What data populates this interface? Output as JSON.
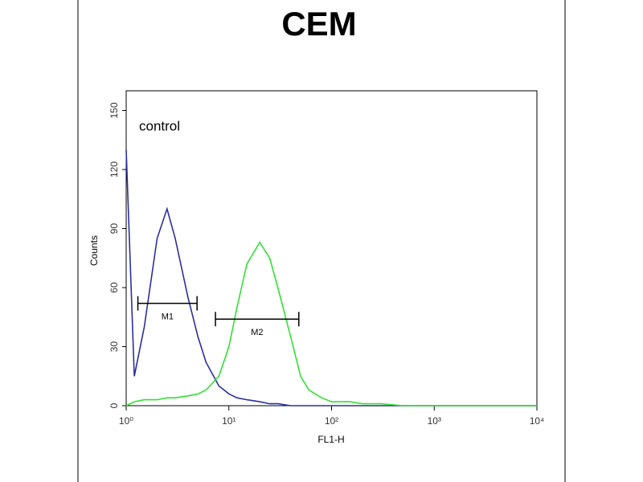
{
  "chart_data": {
    "type": "line",
    "title": "CEM",
    "x_label": "FL1-H",
    "y_label": "Counts",
    "xscale": "log",
    "xlim": [
      1,
      10000
    ],
    "xticks": [
      {
        "value": 1,
        "label": "10⁰"
      },
      {
        "value": 10,
        "label": "10¹"
      },
      {
        "value": 100,
        "label": "10²"
      },
      {
        "value": 1000,
        "label": "10³"
      },
      {
        "value": 10000,
        "label": "10⁴"
      }
    ],
    "ylim": [
      0,
      160
    ],
    "yticks": [
      0,
      30,
      60,
      90,
      120,
      150
    ],
    "x": [
      1,
      1.2,
      1.5,
      2,
      2.5,
      3,
      4,
      5,
      6,
      8,
      10,
      12,
      15,
      20,
      25,
      30,
      40,
      50,
      60,
      80,
      100,
      150,
      200,
      300,
      500,
      1000,
      2000,
      5000,
      10000
    ],
    "series": [
      {
        "name": "control",
        "color": "#2b2fa0",
        "values": [
          130,
          15,
          40,
          85,
          100,
          85,
          55,
          35,
          22,
          10,
          6,
          4,
          3,
          2,
          1,
          1,
          0,
          0,
          0,
          0,
          0,
          0,
          0,
          0,
          0,
          0,
          0,
          0,
          0
        ]
      },
      {
        "color": "#33e033",
        "values": [
          0,
          2,
          3,
          3,
          4,
          4,
          5,
          6,
          8,
          15,
          30,
          50,
          72,
          83,
          75,
          60,
          35,
          15,
          8,
          4,
          2,
          2,
          1,
          1,
          0,
          0,
          0,
          0,
          0
        ]
      }
    ],
    "gates": [
      {
        "label": "M1",
        "range": [
          1.3,
          4.9
        ],
        "y": 52
      },
      {
        "label": "M2",
        "range": [
          7.4,
          48
        ],
        "y": 44
      }
    ]
  }
}
